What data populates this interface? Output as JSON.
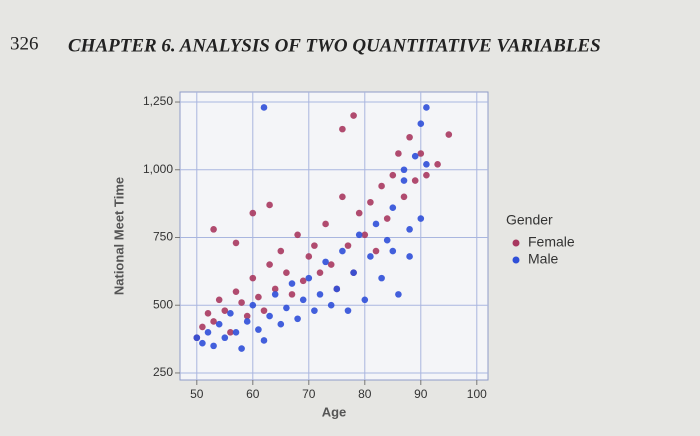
{
  "header": {
    "page_number": "326",
    "title": "CHAPTER 6. ANALYSIS OF TWO QUANTITATIVE VARIABLES"
  },
  "chart_data": {
    "type": "scatter",
    "x_label": "Age",
    "y_label": "National Meet Time",
    "legend_title": "Gender",
    "legend": "right",
    "grid": true,
    "xlim": [
      47,
      102
    ],
    "xticks": [
      50,
      60,
      70,
      80,
      90,
      100
    ],
    "ylim": [
      224,
      1287
    ],
    "yticks": [
      250,
      500,
      750,
      {
        "value": 1000,
        "label": "1,000"
      },
      {
        "value": 1250,
        "label": "1,250"
      }
    ],
    "series": [
      {
        "name": "Female",
        "color": "#a8385f",
        "x": [
          50,
          51,
          52,
          53,
          54,
          55,
          56,
          57,
          58,
          59,
          60,
          61,
          62,
          63,
          64,
          65,
          66,
          67,
          68,
          69,
          70,
          71,
          72,
          73,
          74,
          75,
          76,
          77,
          78,
          79,
          80,
          81,
          82,
          83,
          84,
          85,
          86,
          87,
          88,
          89,
          90,
          91,
          93,
          95,
          60,
          63,
          53,
          57,
          76,
          78
        ],
        "values": [
          380,
          420,
          470,
          440,
          520,
          480,
          400,
          550,
          510,
          460,
          600,
          530,
          480,
          650,
          560,
          700,
          620,
          540,
          760,
          590,
          680,
          720,
          620,
          800,
          650,
          560,
          900,
          720,
          620,
          840,
          760,
          880,
          700,
          940,
          820,
          980,
          1060,
          900,
          1120,
          960,
          1060,
          980,
          1020,
          1130,
          840,
          870,
          780,
          730,
          1150,
          1200
        ]
      },
      {
        "name": "Male",
        "color": "#2f4fd8",
        "x": [
          50,
          51,
          52,
          53,
          54,
          55,
          56,
          57,
          58,
          59,
          60,
          61,
          62,
          63,
          64,
          65,
          66,
          67,
          68,
          69,
          70,
          71,
          72,
          73,
          74,
          75,
          76,
          77,
          78,
          79,
          80,
          81,
          82,
          83,
          84,
          85,
          86,
          87,
          88,
          89,
          90,
          91,
          90,
          91,
          62,
          87,
          85,
          88
        ],
        "values": [
          380,
          360,
          400,
          350,
          430,
          380,
          470,
          400,
          340,
          440,
          500,
          410,
          370,
          460,
          540,
          430,
          490,
          580,
          450,
          520,
          600,
          480,
          540,
          660,
          500,
          560,
          700,
          480,
          620,
          760,
          520,
          680,
          800,
          600,
          740,
          860,
          540,
          960,
          780,
          1050,
          820,
          1020,
          1170,
          1230,
          1230,
          1000,
          700,
          680
        ]
      }
    ]
  }
}
